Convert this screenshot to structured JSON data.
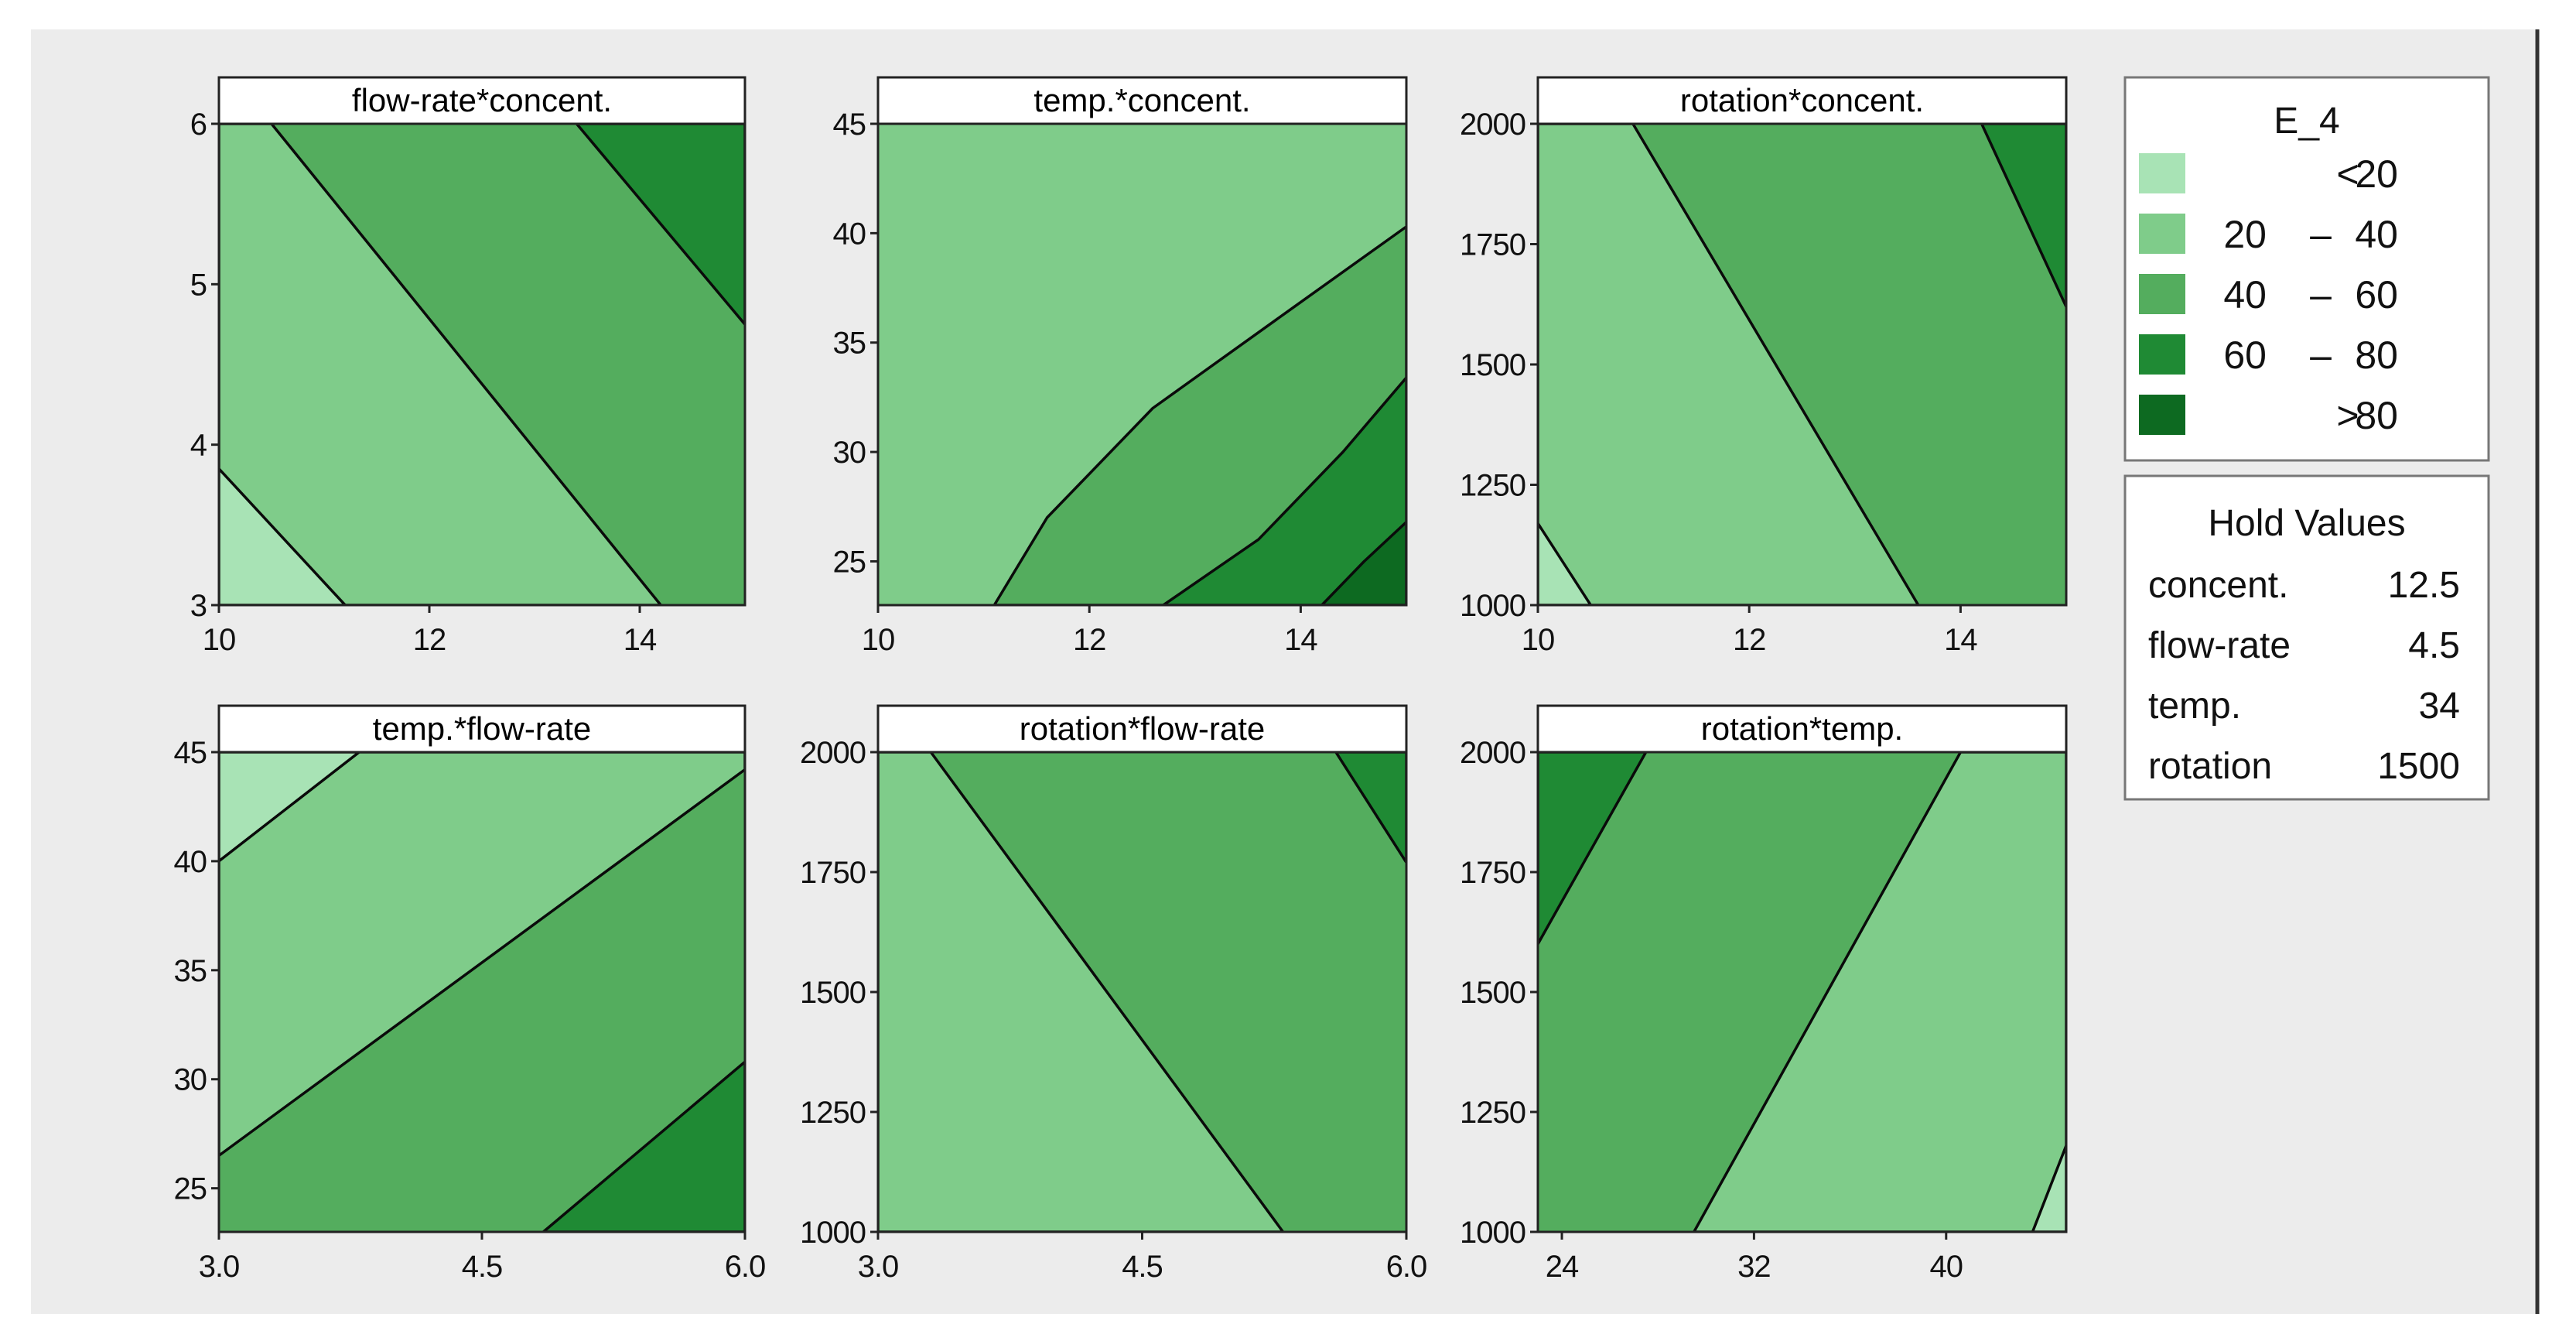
{
  "chart_data": {
    "type": "contour",
    "response": "E_4",
    "levels": [
      {
        "label_op": "<",
        "label_lo": "",
        "label_hi": "20",
        "color": "#a8e3b5"
      },
      {
        "label_op": "–",
        "label_lo": "20",
        "label_hi": "40",
        "color": "#7fcc8a"
      },
      {
        "label_op": "–",
        "label_lo": "40",
        "label_hi": "60",
        "color": "#54ad5e"
      },
      {
        "label_op": "–",
        "label_lo": "60",
        "label_hi": "80",
        "color": "#1f8a34"
      },
      {
        "label_op": ">",
        "label_lo": "",
        "label_hi": "80",
        "color": "#0d6a21"
      }
    ],
    "hold_values": {
      "title": "Hold Values",
      "items": [
        {
          "name": "concent.",
          "value": "12.5"
        },
        {
          "name": "flow-rate",
          "value": "4.5"
        },
        {
          "name": "temp.",
          "value": "34"
        },
        {
          "name": "rotation",
          "value": "1500"
        }
      ]
    },
    "panels": [
      {
        "title": "flow-rate*concent.",
        "x_ticks": [
          "10",
          "12",
          "14"
        ],
        "x_tick_values": [
          10,
          12,
          14
        ],
        "xlim": [
          10,
          15
        ],
        "y_ticks": [
          "3",
          "4",
          "5",
          "6"
        ],
        "y_tick_values": [
          3,
          4,
          5,
          6
        ],
        "ylim": [
          3,
          6
        ],
        "regions": [
          {
            "level": 2,
            "polygon": [
              [
                10,
                3
              ],
              [
                15,
                3
              ],
              [
                15,
                6
              ],
              [
                10,
                6
              ]
            ]
          },
          {
            "level": 1,
            "polygon": [
              [
                10,
                3
              ],
              [
                14.2,
                3
              ],
              [
                10.5,
                6
              ],
              [
                10,
                6
              ]
            ]
          },
          {
            "level": 0,
            "polygon": [
              [
                10,
                3
              ],
              [
                11.2,
                3
              ],
              [
                10,
                3.85
              ]
            ]
          },
          {
            "level": 3,
            "polygon": [
              [
                13.4,
                6
              ],
              [
                15,
                6
              ],
              [
                15,
                4.75
              ]
            ]
          }
        ]
      },
      {
        "title": "temp.*concent.",
        "x_ticks": [
          "10",
          "12",
          "14"
        ],
        "x_tick_values": [
          10,
          12,
          14
        ],
        "xlim": [
          10,
          15
        ],
        "y_ticks": [
          "25",
          "30",
          "35",
          "40",
          "45"
        ],
        "y_tick_values": [
          25,
          30,
          35,
          40,
          45
        ],
        "ylim": [
          23,
          45
        ],
        "regions": [
          {
            "level": 1,
            "polygon": [
              [
                10,
                23
              ],
              [
                15,
                23
              ],
              [
                15,
                45
              ],
              [
                10,
                45
              ]
            ]
          },
          {
            "level": 2,
            "polygon": [
              [
                11.1,
                23
              ],
              [
                11.6,
                27
              ],
              [
                12.6,
                32
              ],
              [
                13.9,
                36.5
              ],
              [
                15,
                40.3
              ],
              [
                15,
                23
              ]
            ]
          },
          {
            "level": 3,
            "polygon": [
              [
                12.7,
                23
              ],
              [
                13.6,
                26
              ],
              [
                14.4,
                30
              ],
              [
                15,
                33.4
              ],
              [
                15,
                23
              ]
            ]
          },
          {
            "level": 4,
            "polygon": [
              [
                14.2,
                23
              ],
              [
                14.6,
                25
              ],
              [
                15,
                26.8
              ],
              [
                15,
                23
              ]
            ]
          }
        ]
      },
      {
        "title": "rotation*concent.",
        "x_ticks": [
          "10",
          "12",
          "14"
        ],
        "x_tick_values": [
          10,
          12,
          14
        ],
        "xlim": [
          10,
          15
        ],
        "y_ticks": [
          "1000",
          "1250",
          "1500",
          "1750",
          "2000"
        ],
        "y_tick_values": [
          1000,
          1250,
          1500,
          1750,
          2000
        ],
        "ylim": [
          1000,
          2000
        ],
        "regions": [
          {
            "level": 2,
            "polygon": [
              [
                10,
                1000
              ],
              [
                15,
                1000
              ],
              [
                15,
                2000
              ],
              [
                10,
                2000
              ]
            ]
          },
          {
            "level": 1,
            "polygon": [
              [
                10,
                1000
              ],
              [
                13.6,
                1000
              ],
              [
                10.9,
                2000
              ],
              [
                10,
                2000
              ]
            ]
          },
          {
            "level": 0,
            "polygon": [
              [
                10,
                1000
              ],
              [
                10.5,
                1000
              ],
              [
                10,
                1170
              ]
            ]
          },
          {
            "level": 3,
            "polygon": [
              [
                14.2,
                2000
              ],
              [
                15,
                2000
              ],
              [
                15,
                1620
              ]
            ]
          }
        ]
      },
      {
        "title": "temp.*flow-rate",
        "x_ticks": [
          "3.0",
          "4.5",
          "6.0"
        ],
        "x_tick_values": [
          3,
          4.5,
          6
        ],
        "xlim": [
          3,
          6
        ],
        "y_ticks": [
          "25",
          "30",
          "35",
          "40",
          "45"
        ],
        "y_tick_values": [
          25,
          30,
          35,
          40,
          45
        ],
        "ylim": [
          23,
          45
        ],
        "regions": [
          {
            "level": 2,
            "polygon": [
              [
                3,
                23
              ],
              [
                6,
                23
              ],
              [
                6,
                45
              ],
              [
                3,
                45
              ]
            ]
          },
          {
            "level": 1,
            "polygon": [
              [
                3,
                26.5
              ],
              [
                6,
                44.2
              ],
              [
                6,
                45
              ],
              [
                3,
                45
              ]
            ]
          },
          {
            "level": 0,
            "polygon": [
              [
                3,
                40
              ],
              [
                3.8,
                45
              ],
              [
                3,
                45
              ]
            ]
          },
          {
            "level": 3,
            "polygon": [
              [
                4.85,
                23
              ],
              [
                6,
                30.8
              ],
              [
                6,
                23
              ]
            ]
          }
        ]
      },
      {
        "title": "rotation*flow-rate",
        "x_ticks": [
          "3.0",
          "4.5",
          "6.0"
        ],
        "x_tick_values": [
          3,
          4.5,
          6
        ],
        "xlim": [
          3,
          6
        ],
        "y_ticks": [
          "1000",
          "1250",
          "1500",
          "1750",
          "2000"
        ],
        "y_tick_values": [
          1000,
          1250,
          1500,
          1750,
          2000
        ],
        "ylim": [
          1000,
          2000
        ],
        "regions": [
          {
            "level": 2,
            "polygon": [
              [
                3,
                1000
              ],
              [
                6,
                1000
              ],
              [
                6,
                2000
              ],
              [
                3,
                2000
              ]
            ]
          },
          {
            "level": 1,
            "polygon": [
              [
                3,
                1000
              ],
              [
                5.3,
                1000
              ],
              [
                3.3,
                2000
              ],
              [
                3,
                2000
              ]
            ]
          },
          {
            "level": 3,
            "polygon": [
              [
                5.6,
                2000
              ],
              [
                6,
                2000
              ],
              [
                6,
                1770
              ]
            ]
          }
        ]
      },
      {
        "title": "rotation*temp.",
        "x_ticks": [
          "24",
          "32",
          "40"
        ],
        "x_tick_values": [
          24,
          32,
          40
        ],
        "xlim": [
          23,
          45
        ],
        "y_ticks": [
          "1000",
          "1250",
          "1500",
          "1750",
          "2000"
        ],
        "y_tick_values": [
          1000,
          1250,
          1500,
          1750,
          2000
        ],
        "ylim": [
          1000,
          2000
        ],
        "regions": [
          {
            "level": 2,
            "polygon": [
              [
                23,
                1000
              ],
              [
                45,
                1000
              ],
              [
                45,
                2000
              ],
              [
                23,
                2000
              ]
            ]
          },
          {
            "level": 1,
            "polygon": [
              [
                29.5,
                1000
              ],
              [
                45,
                1000
              ],
              [
                45,
                2000
              ],
              [
                40.6,
                2000
              ]
            ]
          },
          {
            "level": 0,
            "polygon": [
              [
                43.6,
                1000
              ],
              [
                45,
                1000
              ],
              [
                45,
                1180
              ]
            ]
          },
          {
            "level": 3,
            "polygon": [
              [
                23,
                1600
              ],
              [
                27.5,
                2000
              ],
              [
                23,
                2000
              ]
            ]
          }
        ]
      }
    ]
  }
}
